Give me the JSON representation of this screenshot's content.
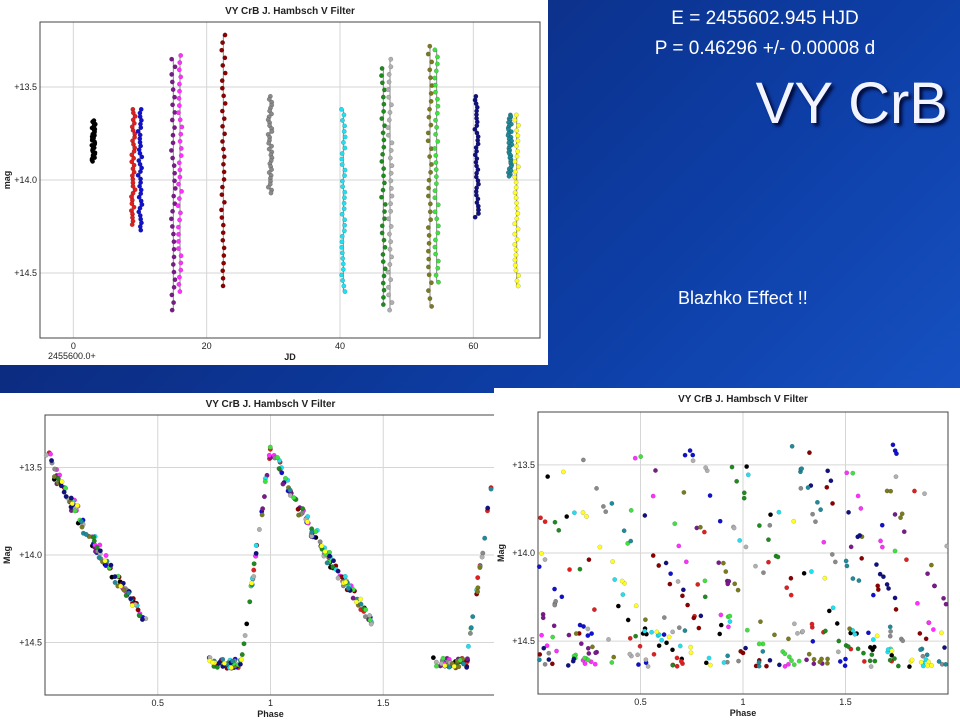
{
  "header": {
    "epoch": "E = 2455602.945  HJD",
    "period": "P = 0.46296 +/- 0.00008 d",
    "star": "VY CrB",
    "note": "Blazhko Effect !!"
  },
  "chart_data": [
    {
      "type": "scatter",
      "title": "VY CrB J. Hambsch V Filter",
      "xlabel": "JD",
      "x_offset_label": "2455600.0+",
      "ylabel": "mag",
      "xlim": [
        -5,
        70
      ],
      "ylim": [
        14.85,
        13.15
      ],
      "y_inverted": true,
      "xticks": [
        0,
        20,
        40,
        60
      ],
      "yticks": [
        13.5,
        14.0,
        14.5
      ],
      "ytick_labels": [
        "+13.5",
        "+14.0",
        "+14.5"
      ],
      "grid": true,
      "series": [
        {
          "color": "#000000",
          "x": 3.0,
          "ymin": 13.68,
          "ymax": 13.9
        },
        {
          "color": "#e02020",
          "x": 9.0,
          "ymin": 13.62,
          "ymax": 14.24
        },
        {
          "color": "#1010d0",
          "x": 10.0,
          "ymin": 13.62,
          "ymax": 14.27
        },
        {
          "color": "#7a1a8a",
          "x": 15.0,
          "ymin": 13.35,
          "ymax": 14.7
        },
        {
          "color": "#ff30ff",
          "x": 16.0,
          "ymin": 13.33,
          "ymax": 14.6
        },
        {
          "color": "#8b0000",
          "x": 22.5,
          "ymin": 13.22,
          "ymax": 14.57
        },
        {
          "color": "#8a8a8a",
          "x": 29.5,
          "ymin": 13.55,
          "ymax": 14.07
        },
        {
          "color": "#20e0f0",
          "x": 40.5,
          "ymin": 13.62,
          "ymax": 14.6
        },
        {
          "color": "#1f8a1f",
          "x": 46.5,
          "ymin": 13.4,
          "ymax": 14.67
        },
        {
          "color": "#b0b0b0",
          "x": 47.5,
          "ymin": 13.35,
          "ymax": 14.7
        },
        {
          "color": "#7a7a20",
          "x": 53.5,
          "ymin": 13.28,
          "ymax": 14.68
        },
        {
          "color": "#40e040",
          "x": 54.5,
          "ymin": 13.3,
          "ymax": 14.55
        },
        {
          "color": "#101080",
          "x": 60.5,
          "ymin": 13.55,
          "ymax": 14.2
        },
        {
          "color": "#208a9a",
          "x": 65.5,
          "ymin": 13.65,
          "ymax": 13.98
        },
        {
          "color": "#ffff20",
          "x": 66.5,
          "ymin": 13.65,
          "ymax": 14.57
        }
      ]
    },
    {
      "type": "scatter",
      "title": "VY CrB J. Hambsch V Filter",
      "xlabel": "Phase",
      "ylabel": "Mag",
      "xlim": [
        0.0,
        2.0
      ],
      "ylim": [
        14.8,
        13.2
      ],
      "y_inverted": true,
      "xticks": [
        0.5,
        1.0,
        1.5
      ],
      "yticks": [
        13.5,
        14.0,
        14.5
      ],
      "ytick_labels": [
        "+13.5",
        "+14.0",
        "+14.5"
      ],
      "grid": true,
      "note": "Folded light curve: steep rise near phase 0/1, linear decline to ~14.4 mag near phase 0.45, minimum ~14.62 mag at phase 0.75-0.85"
    },
    {
      "type": "scatter",
      "title": "VY CrB J. Hambsch V Filter",
      "xlabel": "Phase",
      "ylabel": "Mag",
      "xlim": [
        0.0,
        2.0
      ],
      "ylim": [
        14.8,
        13.2
      ],
      "y_inverted": true,
      "xticks": [
        0.5,
        1.0,
        1.5
      ],
      "yticks": [
        13.5,
        14.0,
        14.5
      ],
      "ytick_labels": [
        "+13.5",
        "+14.0",
        "+14.5"
      ],
      "grid": true,
      "note": "Data folded with an offset period; each night's light curve shifted in phase"
    }
  ]
}
